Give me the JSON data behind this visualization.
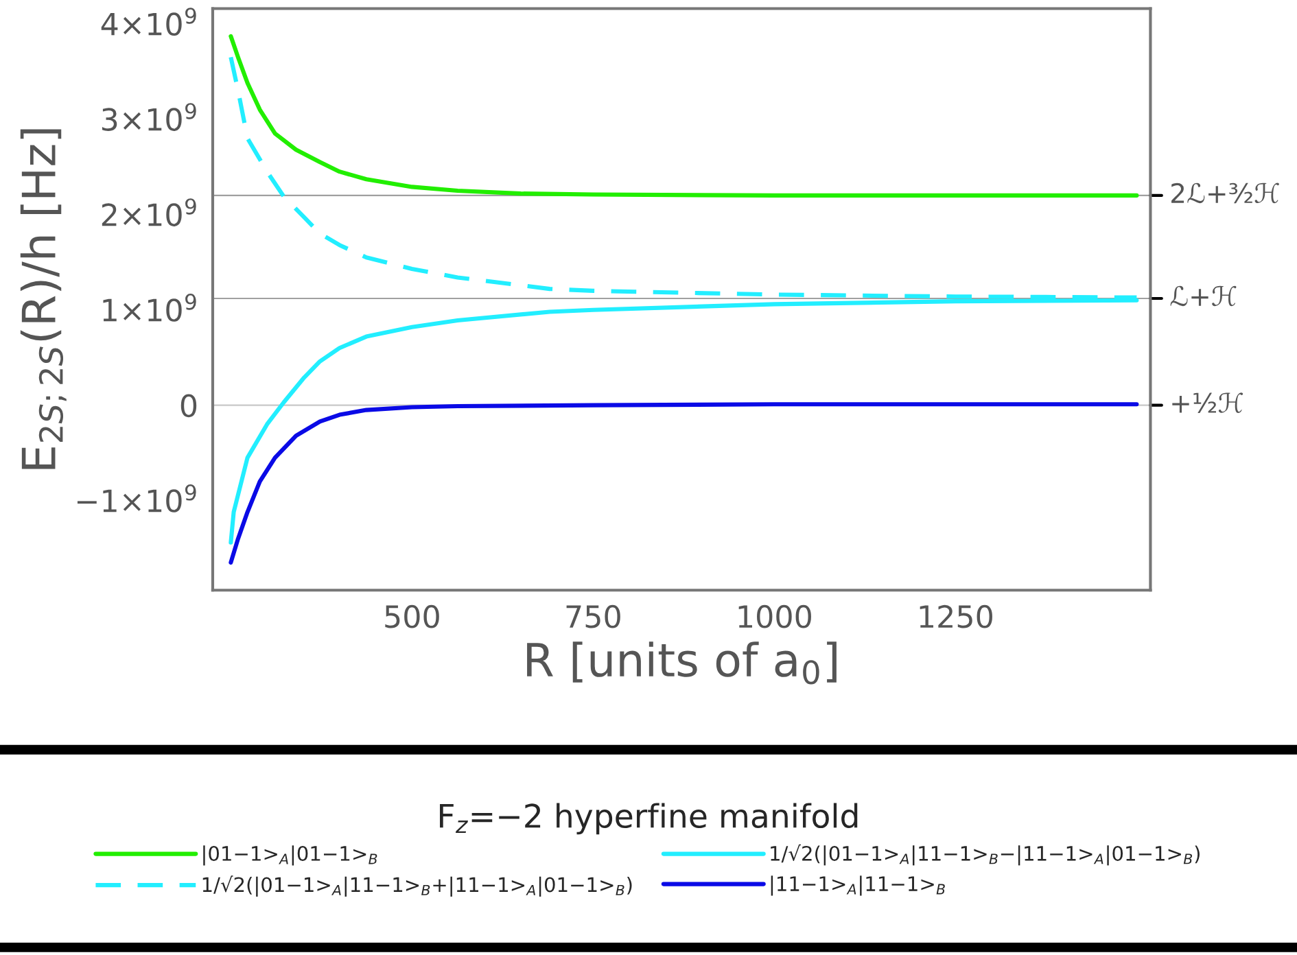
{
  "chart_data": {
    "type": "line",
    "xlabel": "R [units of a$_{0}$]",
    "ylabel": "E$_{2S;2S}$(R)/h [Hz]",
    "legend_title": "F$_{z}$=−2 hyperfine manifold",
    "xlim": [
      225,
      1519
    ],
    "xticks": [
      500,
      750,
      1000,
      1250
    ],
    "ylim": [
      -1940000000.0,
      4160000000.0
    ],
    "yticks": [
      {
        "value": -1000000000.0,
        "label": "−1×10$^{9}$"
      },
      {
        "value": 0,
        "label": "0"
      },
      {
        "value": 1000000000.0,
        "label": "1×10$^{9}$"
      },
      {
        "value": 2000000000.0,
        "label": "2×10$^{9}$"
      },
      {
        "value": 3000000000.0,
        "label": "3×10$^{9}$"
      },
      {
        "value": 4000000000.0,
        "label": "4×10$^{9}$"
      }
    ],
    "grid": false,
    "legend": "bottom",
    "marker": "none",
    "ref_lines": [
      {
        "axis": "y",
        "value": 2200000000.0,
        "label": "2ℒ+³⁄₂ℋ",
        "color": "#a0a0a0"
      },
      {
        "axis": "y",
        "value": 1120000000.0,
        "label": "ℒ+ℋ",
        "color": "#a0a0a0"
      },
      {
        "axis": "y",
        "value": 0,
        "label": "+½ℋ",
        "color": "#c8c8c8"
      }
    ],
    "series": [
      {
        "name": "|01−1>$_{A}$|01−1>$_{B}$",
        "color": "#22ee00",
        "line_style": "solid",
        "x": [
          250,
          260,
          273,
          290,
          311,
          340,
          373,
          400,
          437,
          500,
          563,
          650,
          750,
          1000,
          1250,
          1500
        ],
        "values": [
          3870000000.0,
          3650000000.0,
          3380000000.0,
          3100000000.0,
          2850000000.0,
          2680000000.0,
          2550000000.0,
          2450000000.0,
          2370000000.0,
          2290000000.0,
          2250000000.0,
          2220000000.0,
          2210000000.0,
          2200000000.0,
          2200000000.0,
          2200000000.0
        ]
      },
      {
        "name": "1/√2(|01−1>$_{A}$|11−1>$_{B}$+|11−1>$_{A}$|01−1>$_{B}$)",
        "color": "#22eeff",
        "line_style": "dashed",
        "x": [
          250,
          260,
          273,
          300,
          323,
          350,
          373,
          400,
          437,
          500,
          563,
          690,
          750,
          1000,
          1250,
          1500
        ],
        "values": [
          3650000000.0,
          3300000000.0,
          2800000000.0,
          2450000000.0,
          2190000000.0,
          1980000000.0,
          1800000000.0,
          1680000000.0,
          1550000000.0,
          1430000000.0,
          1340000000.0,
          1220000000.0,
          1200000000.0,
          1160000000.0,
          1140000000.0,
          1130000000.0
        ]
      },
      {
        "name": "1/√2(|01−1>$_{A}$|11−1>$_{B}$−|11−1>$_{A}$|01−1>$_{B}$)",
        "color": "#22eeff",
        "line_style": "solid",
        "x": [
          250,
          254,
          273,
          300,
          323,
          350,
          373,
          400,
          437,
          500,
          563,
          690,
          750,
          1000,
          1250,
          1500
        ],
        "values": [
          -1440000000.0,
          -1120000000.0,
          -550000000.0,
          -200000000.0,
          30000000.0,
          280000000.0,
          460000000.0,
          600000000.0,
          720000000.0,
          820000000.0,
          890000000.0,
          980000000.0,
          1000000000.0,
          1060000000.0,
          1090000000.0,
          1100000000.0
        ]
      },
      {
        "name": "|11−1>$_{A}$|11−1>$_{B}$",
        "color": "#0a0ae6",
        "line_style": "solid",
        "x": [
          250,
          260,
          273,
          290,
          311,
          340,
          373,
          400,
          437,
          500,
          563,
          750,
          1000,
          1500
        ],
        "values": [
          -1650000000.0,
          -1400000000.0,
          -1120000000.0,
          -800000000.0,
          -550000000.0,
          -320000000.0,
          -170000000.0,
          -100000000.0,
          -50000000.0,
          -20000000.0,
          -10000000.0,
          0.0,
          10000000.0,
          10000000.0
        ]
      }
    ]
  }
}
